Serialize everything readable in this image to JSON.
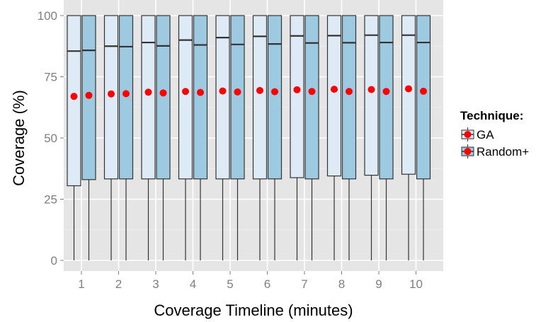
{
  "chart_data": {
    "type": "boxplot",
    "xlabel": "Coverage Timeline (minutes)",
    "ylabel": "Coverage (%)",
    "ylim": [
      0,
      100
    ],
    "yticks": [
      0,
      25,
      50,
      75,
      100
    ],
    "categories": [
      "1",
      "2",
      "3",
      "4",
      "5",
      "6",
      "7",
      "8",
      "9",
      "10"
    ],
    "grid": true,
    "legend": {
      "title": "Technique:",
      "position": "right"
    },
    "series": [
      {
        "name": "GA",
        "color": "#deebf7",
        "boxes": [
          {
            "whisker_low": 0,
            "q1": 30.5,
            "median": 85.5,
            "q3": 100,
            "whisker_high": 100,
            "mean": 67.0
          },
          {
            "whisker_low": 0,
            "q1": 33.3,
            "median": 87.5,
            "q3": 100,
            "whisker_high": 100,
            "mean": 68.0
          },
          {
            "whisker_low": 0,
            "q1": 33.3,
            "median": 89.0,
            "q3": 100,
            "whisker_high": 100,
            "mean": 68.7
          },
          {
            "whisker_low": 0,
            "q1": 33.3,
            "median": 90.0,
            "q3": 100,
            "whisker_high": 100,
            "mean": 69.0
          },
          {
            "whisker_low": 0,
            "q1": 33.3,
            "median": 91.0,
            "q3": 100,
            "whisker_high": 100,
            "mean": 69.2
          },
          {
            "whisker_low": 0,
            "q1": 33.3,
            "median": 91.5,
            "q3": 100,
            "whisker_high": 100,
            "mean": 69.4
          },
          {
            "whisker_low": 0,
            "q1": 33.8,
            "median": 91.7,
            "q3": 100,
            "whisker_high": 100,
            "mean": 69.7
          },
          {
            "whisker_low": 0,
            "q1": 34.5,
            "median": 91.8,
            "q3": 100,
            "whisker_high": 100,
            "mean": 69.9
          },
          {
            "whisker_low": 0,
            "q1": 34.8,
            "median": 92.0,
            "q3": 100,
            "whisker_high": 100,
            "mean": 69.8
          },
          {
            "whisker_low": 0,
            "q1": 35.2,
            "median": 92.0,
            "q3": 100,
            "whisker_high": 100,
            "mean": 70.1
          }
        ]
      },
      {
        "name": "Random+",
        "color": "#9ecae1",
        "boxes": [
          {
            "whisker_low": 0,
            "q1": 33.0,
            "median": 85.8,
            "q3": 100,
            "whisker_high": 100,
            "mean": 67.4
          },
          {
            "whisker_low": 0,
            "q1": 33.3,
            "median": 87.3,
            "q3": 100,
            "whisker_high": 100,
            "mean": 68.1
          },
          {
            "whisker_low": 0,
            "q1": 33.3,
            "median": 87.6,
            "q3": 100,
            "whisker_high": 100,
            "mean": 68.4
          },
          {
            "whisker_low": 0,
            "q1": 33.3,
            "median": 88.0,
            "q3": 100,
            "whisker_high": 100,
            "mean": 68.6
          },
          {
            "whisker_low": 0,
            "q1": 33.3,
            "median": 88.2,
            "q3": 100,
            "whisker_high": 100,
            "mean": 68.8
          },
          {
            "whisker_low": 0,
            "q1": 33.3,
            "median": 88.4,
            "q3": 100,
            "whisker_high": 100,
            "mean": 68.9
          },
          {
            "whisker_low": 0,
            "q1": 33.3,
            "median": 88.8,
            "q3": 100,
            "whisker_high": 100,
            "mean": 69.0
          },
          {
            "whisker_low": 0,
            "q1": 33.3,
            "median": 88.9,
            "q3": 100,
            "whisker_high": 100,
            "mean": 69.0
          },
          {
            "whisker_low": 0,
            "q1": 33.3,
            "median": 89.0,
            "q3": 100,
            "whisker_high": 100,
            "mean": 69.0
          },
          {
            "whisker_low": 0,
            "q1": 33.3,
            "median": 89.0,
            "q3": 100,
            "whisker_high": 100,
            "mean": 69.1
          }
        ]
      }
    ],
    "mean_marker_color": "#ff0000"
  }
}
